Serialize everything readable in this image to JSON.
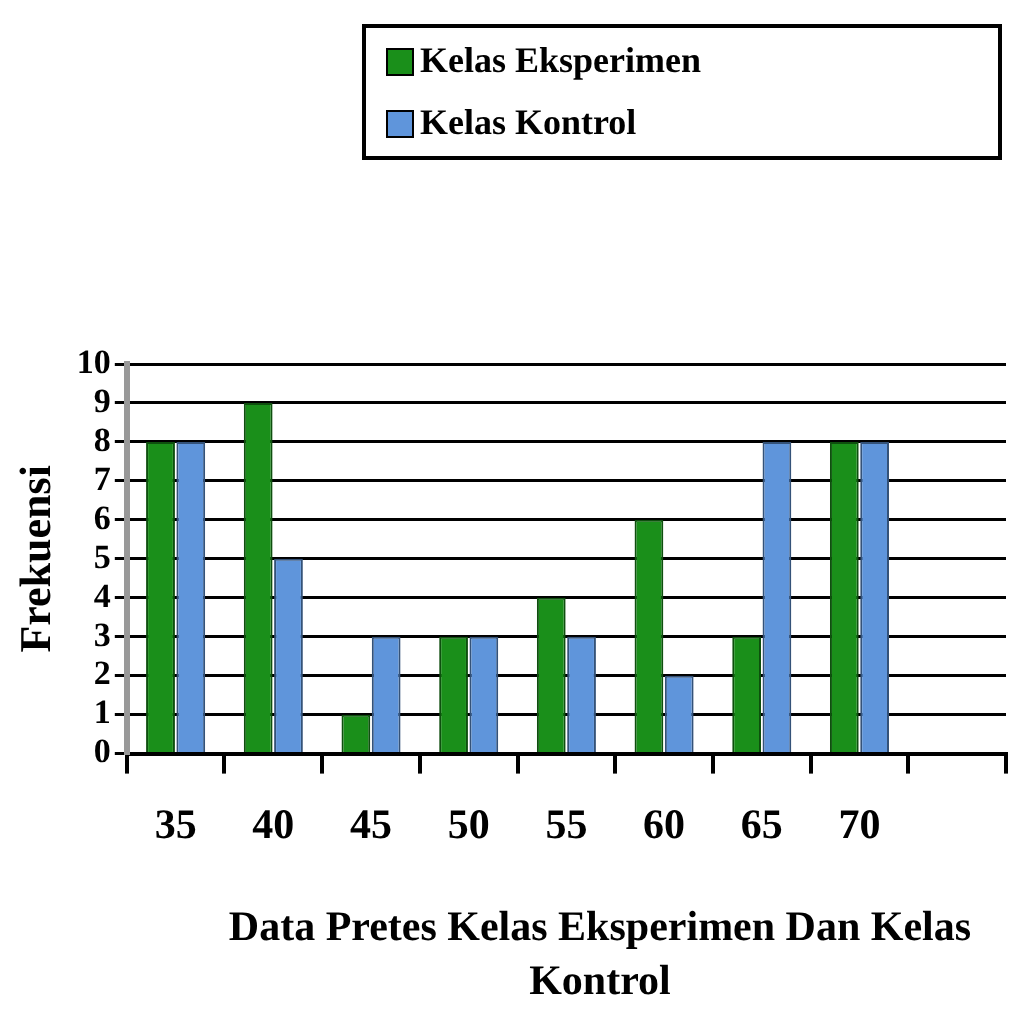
{
  "chart_data": {
    "type": "bar",
    "xlabel": "Data Pretes Kelas Eksperimen Dan Kelas Kontrol",
    "ylabel": "Frekuensi",
    "categories": [
      "35",
      "40",
      "45",
      "50",
      "55",
      "60",
      "65",
      "70",
      null
    ],
    "series": [
      {
        "name": "Kelas Eksperimen",
        "color": "#1a8f1a",
        "values": [
          8,
          9,
          1,
          3,
          4,
          6,
          3,
          8,
          null
        ]
      },
      {
        "name": "Kelas Kontrol",
        "color": "#5f95db",
        "values": [
          8,
          5,
          3,
          3,
          3,
          2,
          8,
          8,
          null
        ]
      }
    ],
    "ylim": [
      0,
      10
    ],
    "yticks": [
      0,
      1,
      2,
      3,
      4,
      5,
      6,
      7,
      8,
      9,
      10
    ],
    "grid": "y",
    "legend": "top right"
  }
}
